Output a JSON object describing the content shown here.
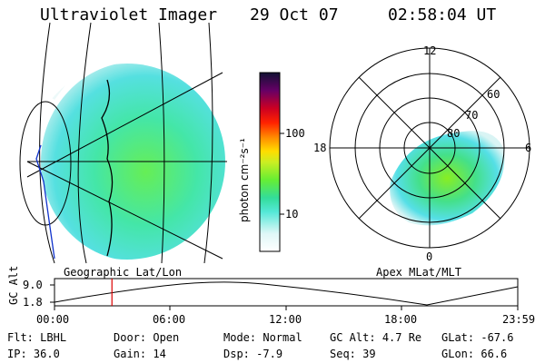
{
  "header": {
    "title": "Ultraviolet Imager",
    "date": "29 Oct 07",
    "time": "02:58:04 UT"
  },
  "colorbar": {
    "unit_label": "photon cm⁻²s⁻¹",
    "ticks": [
      "100",
      "10"
    ]
  },
  "polar": {
    "mlt_labels": {
      "top": "12",
      "left": "18",
      "right": "6",
      "bottom": "0"
    },
    "lat_labels": [
      "60",
      "70",
      "80"
    ]
  },
  "panels": {
    "geo_caption": "Geographic Lat/Lon",
    "apex_caption": "Apex MLat/MLT"
  },
  "altitude_plot": {
    "ylabel": "GC Alt",
    "yticks": [
      "9.0",
      "1.8"
    ],
    "xticks": [
      "00:00",
      "06:00",
      "12:00",
      "18:00",
      "23:59"
    ],
    "marker_time_fraction": 0.124
  },
  "footer": {
    "row1": [
      {
        "label": "Flt:",
        "value": "LBHL"
      },
      {
        "label": "Door:",
        "value": "Open"
      },
      {
        "label": "Mode:",
        "value": "Normal"
      },
      {
        "label": "GC Alt:",
        "value": "4.7 Re"
      },
      {
        "label": "GLat:",
        "value": "-67.6"
      }
    ],
    "row2": [
      {
        "label": "IP:",
        "value": "36.0"
      },
      {
        "label": "Gain:",
        "value": "14"
      },
      {
        "label": "Dsp:",
        "value": "-7.9"
      },
      {
        "label": "Seq:",
        "value": "39"
      },
      {
        "label": "GLon:",
        "value": "66.6"
      }
    ]
  }
}
